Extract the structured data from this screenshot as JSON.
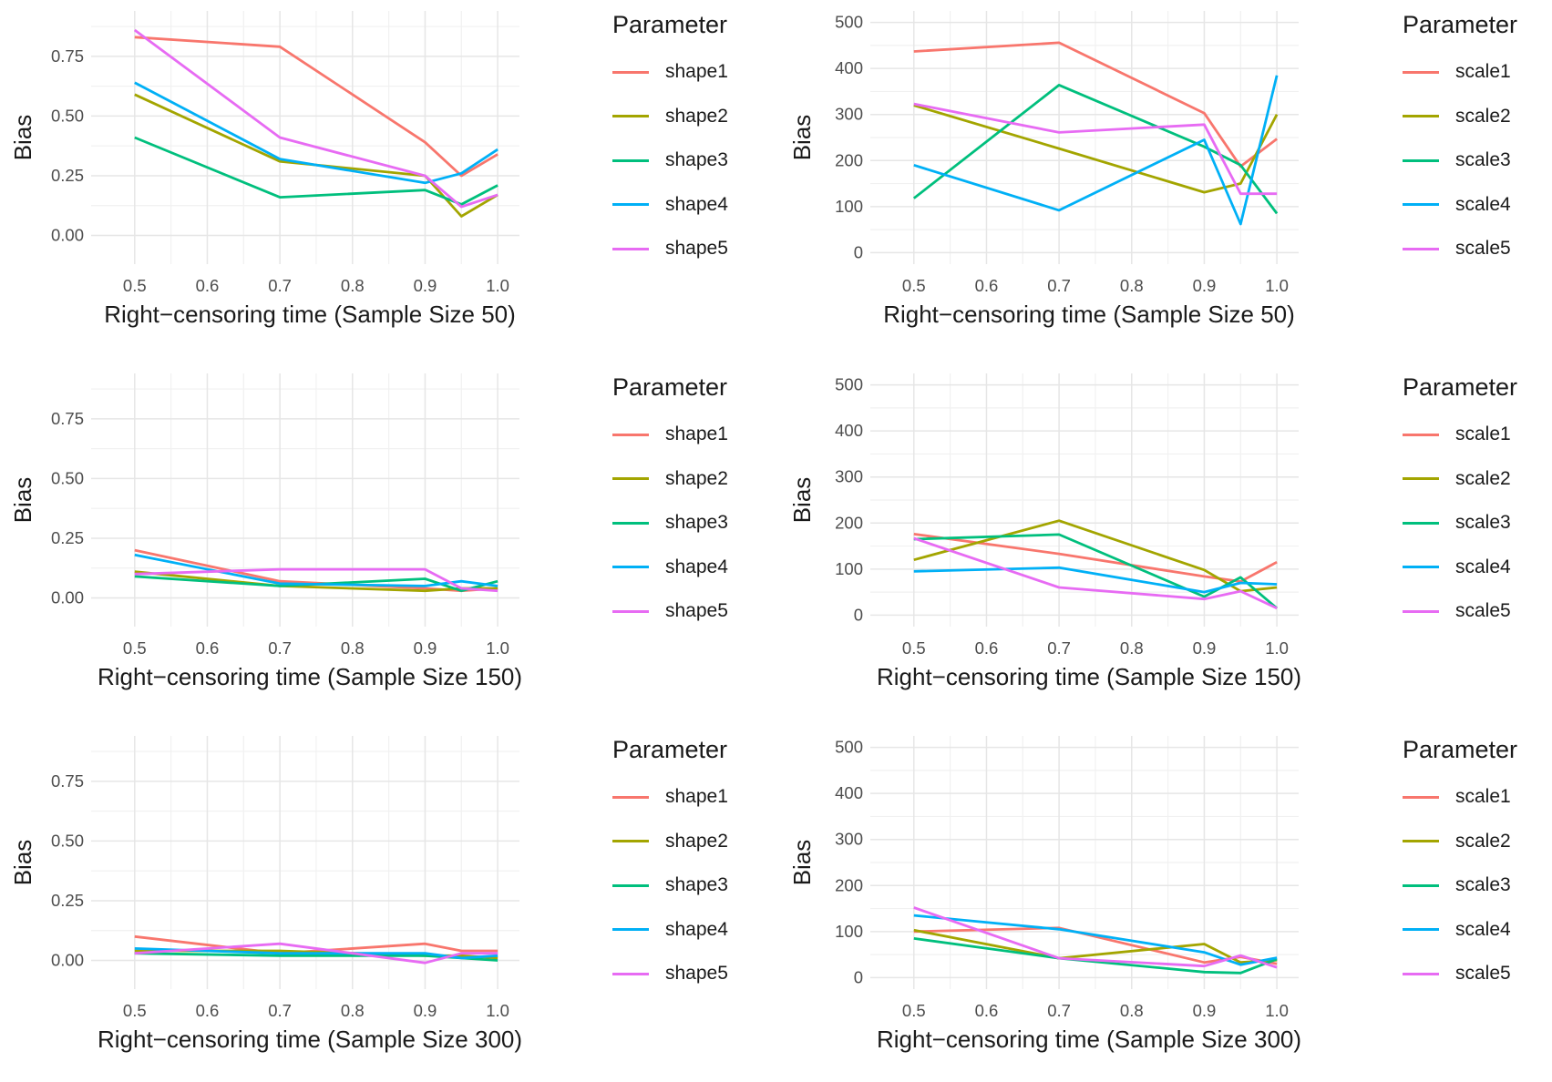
{
  "chart_data": [
    {
      "type": "line",
      "xlabel": "Right−censoring time (Sample Size 50)",
      "ylabel": "Bias",
      "x": [
        0.5,
        0.7,
        0.9,
        0.95,
        1.0
      ],
      "x_ticks": [
        "0.5",
        "0.6",
        "0.7",
        "0.8",
        "0.9",
        "1.0"
      ],
      "y_ticks": [
        "0.00",
        "0.25",
        "0.50",
        "0.75"
      ],
      "ylim": [
        -0.12,
        0.94
      ],
      "grid": true,
      "legend": {
        "title": "Parameter",
        "position": "right"
      },
      "series": [
        {
          "name": "shape1",
          "color": "#F8766D",
          "values": [
            0.83,
            0.79,
            0.39,
            0.25,
            0.34
          ]
        },
        {
          "name": "shape2",
          "color": "#A3A500",
          "values": [
            0.59,
            0.31,
            0.25,
            0.08,
            0.17
          ]
        },
        {
          "name": "shape3",
          "color": "#00BF7D",
          "values": [
            0.41,
            0.16,
            0.19,
            0.13,
            0.21
          ]
        },
        {
          "name": "shape4",
          "color": "#00B0F6",
          "values": [
            0.64,
            0.32,
            0.22,
            0.26,
            0.36
          ]
        },
        {
          "name": "shape5",
          "color": "#E76BF3",
          "values": [
            0.86,
            0.41,
            0.25,
            0.12,
            0.17
          ]
        }
      ]
    },
    {
      "type": "line",
      "xlabel": "Right−censoring time (Sample Size 50)",
      "ylabel": "Bias",
      "x": [
        0.5,
        0.7,
        0.9,
        0.95,
        1.0
      ],
      "x_ticks": [
        "0.5",
        "0.6",
        "0.7",
        "0.8",
        "0.9",
        "1.0"
      ],
      "y_ticks": [
        "0",
        "100",
        "200",
        "300",
        "400",
        "500"
      ],
      "ylim": [
        -25,
        525
      ],
      "grid": true,
      "legend": {
        "title": "Parameter",
        "position": "right"
      },
      "series": [
        {
          "name": "scale1",
          "color": "#F8766D",
          "values": [
            437,
            456,
            303,
            187,
            247
          ]
        },
        {
          "name": "scale2",
          "color": "#A3A500",
          "values": [
            320,
            226,
            131,
            150,
            300
          ]
        },
        {
          "name": "scale3",
          "color": "#00BF7D",
          "values": [
            118,
            364,
            230,
            190,
            85
          ]
        },
        {
          "name": "scale4",
          "color": "#00B0F6",
          "values": [
            190,
            92,
            245,
            62,
            385
          ]
        },
        {
          "name": "scale5",
          "color": "#E76BF3",
          "values": [
            323,
            261,
            278,
            128,
            128
          ]
        }
      ]
    },
    {
      "type": "line",
      "xlabel": "Right−censoring time (Sample Size 150)",
      "ylabel": "Bias",
      "x": [
        0.5,
        0.7,
        0.9,
        0.95,
        1.0
      ],
      "x_ticks": [
        "0.5",
        "0.6",
        "0.7",
        "0.8",
        "0.9",
        "1.0"
      ],
      "y_ticks": [
        "0.00",
        "0.25",
        "0.50",
        "0.75"
      ],
      "ylim": [
        -0.12,
        0.94
      ],
      "grid": true,
      "legend": {
        "title": "Parameter",
        "position": "right"
      },
      "series": [
        {
          "name": "shape1",
          "color": "#F8766D",
          "values": [
            0.2,
            0.07,
            0.04,
            0.03,
            0.04
          ]
        },
        {
          "name": "shape2",
          "color": "#A3A500",
          "values": [
            0.11,
            0.05,
            0.03,
            0.04,
            0.04
          ]
        },
        {
          "name": "shape3",
          "color": "#00BF7D",
          "values": [
            0.09,
            0.05,
            0.08,
            0.03,
            0.07
          ]
        },
        {
          "name": "shape4",
          "color": "#00B0F6",
          "values": [
            0.18,
            0.06,
            0.05,
            0.07,
            0.05
          ]
        },
        {
          "name": "shape5",
          "color": "#E76BF3",
          "values": [
            0.1,
            0.12,
            0.12,
            0.04,
            0.03
          ]
        }
      ]
    },
    {
      "type": "line",
      "xlabel": "Right−censoring time (Sample Size 150)",
      "ylabel": "Bias",
      "x": [
        0.5,
        0.7,
        0.9,
        0.95,
        1.0
      ],
      "x_ticks": [
        "0.5",
        "0.6",
        "0.7",
        "0.8",
        "0.9",
        "1.0"
      ],
      "y_ticks": [
        "0",
        "100",
        "200",
        "300",
        "400",
        "500"
      ],
      "ylim": [
        -25,
        525
      ],
      "grid": true,
      "legend": {
        "title": "Parameter",
        "position": "right"
      },
      "series": [
        {
          "name": "scale1",
          "color": "#F8766D",
          "values": [
            176,
            133,
            84,
            73,
            115
          ]
        },
        {
          "name": "scale2",
          "color": "#A3A500",
          "values": [
            120,
            205,
            98,
            52,
            60
          ]
        },
        {
          "name": "scale3",
          "color": "#00BF7D",
          "values": [
            165,
            175,
            40,
            82,
            15
          ]
        },
        {
          "name": "scale4",
          "color": "#00B0F6",
          "values": [
            95,
            103,
            50,
            70,
            67
          ]
        },
        {
          "name": "scale5",
          "color": "#E76BF3",
          "values": [
            167,
            60,
            35,
            52,
            15
          ]
        }
      ]
    },
    {
      "type": "line",
      "xlabel": "Right−censoring time (Sample Size 300)",
      "ylabel": "Bias",
      "x": [
        0.5,
        0.7,
        0.9,
        0.95,
        1.0
      ],
      "x_ticks": [
        "0.5",
        "0.6",
        "0.7",
        "0.8",
        "0.9",
        "1.0"
      ],
      "y_ticks": [
        "0.00",
        "0.25",
        "0.50",
        "0.75"
      ],
      "ylim": [
        -0.12,
        0.94
      ],
      "grid": true,
      "legend": {
        "title": "Parameter",
        "position": "right"
      },
      "series": [
        {
          "name": "shape1",
          "color": "#F8766D",
          "values": [
            0.1,
            0.03,
            0.07,
            0.04,
            0.04
          ]
        },
        {
          "name": "shape2",
          "color": "#A3A500",
          "values": [
            0.04,
            0.04,
            0.02,
            0.02,
            0.01
          ]
        },
        {
          "name": "shape3",
          "color": "#00BF7D",
          "values": [
            0.03,
            0.02,
            0.02,
            0.01,
            0.0
          ]
        },
        {
          "name": "shape4",
          "color": "#00B0F6",
          "values": [
            0.05,
            0.03,
            0.03,
            0.01,
            0.02
          ]
        },
        {
          "name": "shape5",
          "color": "#E76BF3",
          "values": [
            0.03,
            0.07,
            -0.01,
            0.03,
            0.03
          ]
        }
      ]
    },
    {
      "type": "line",
      "xlabel": "Right−censoring time (Sample Size 300)",
      "ylabel": "Bias",
      "x": [
        0.5,
        0.7,
        0.9,
        0.95,
        1.0
      ],
      "x_ticks": [
        "0.5",
        "0.6",
        "0.7",
        "0.8",
        "0.9",
        "1.0"
      ],
      "y_ticks": [
        "0",
        "100",
        "200",
        "300",
        "400",
        "500"
      ],
      "ylim": [
        -25,
        525
      ],
      "grid": true,
      "legend": {
        "title": "Parameter",
        "position": "right"
      },
      "series": [
        {
          "name": "scale1",
          "color": "#F8766D",
          "values": [
            100,
            108,
            33,
            45,
            30
          ]
        },
        {
          "name": "scale2",
          "color": "#A3A500",
          "values": [
            103,
            42,
            73,
            33,
            38
          ]
        },
        {
          "name": "scale3",
          "color": "#00BF7D",
          "values": [
            85,
            42,
            12,
            10,
            40
          ]
        },
        {
          "name": "scale4",
          "color": "#00B0F6",
          "values": [
            135,
            105,
            55,
            28,
            43
          ]
        },
        {
          "name": "scale5",
          "color": "#E76BF3",
          "values": [
            152,
            42,
            25,
            48,
            22
          ]
        }
      ]
    }
  ]
}
